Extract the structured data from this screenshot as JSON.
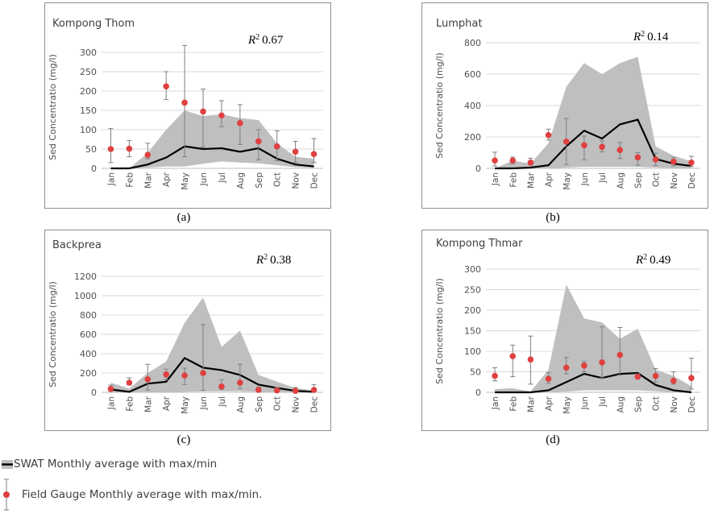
{
  "chart_data": [
    {
      "type": "line",
      "title": "Kompong Thom",
      "annotation": "0.67",
      "caption": "(a)",
      "ylabel": "Sed Concentratio (mg/l)",
      "ylim": [
        0,
        300
      ],
      "yticks": [
        0,
        50,
        100,
        150,
        200,
        250,
        300
      ],
      "categories": [
        "Jan",
        "Feb",
        "Mar",
        "Apr",
        "May",
        "Jun",
        "Jul",
        "Aug",
        "Sep",
        "Oct",
        "Nov",
        "Dec"
      ],
      "swat_avg": [
        0,
        0,
        10,
        28,
        57,
        50,
        52,
        43,
        52,
        25,
        10,
        5
      ],
      "swat_min": [
        0,
        0,
        2,
        5,
        5,
        12,
        18,
        15,
        13,
        8,
        3,
        2
      ],
      "swat_max": [
        0,
        0,
        40,
        100,
        150,
        135,
        140,
        130,
        125,
        65,
        30,
        25
      ],
      "field_avg": [
        50,
        51,
        35,
        212,
        170,
        147,
        137,
        117,
        70,
        57,
        43,
        37
      ],
      "field_min": [
        15,
        30,
        25,
        178,
        30,
        55,
        108,
        62,
        22,
        20,
        15,
        15
      ],
      "field_max": [
        103,
        72,
        65,
        250,
        318,
        205,
        175,
        165,
        100,
        97,
        70,
        77
      ]
    },
    {
      "type": "line",
      "title": "Lumphat",
      "annotation": "0.14",
      "caption": "(b)",
      "ylabel": "Sed Concentratio (mg/l)",
      "ylim": [
        0,
        800
      ],
      "yticks": [
        0,
        200,
        400,
        600,
        800
      ],
      "categories": [
        "Jan",
        "Feb",
        "Mar",
        "Apr",
        "May",
        "Jun",
        "Jul",
        "Aug",
        "Sep",
        "Oct",
        "Nov",
        "Dec"
      ],
      "swat_avg": [
        0,
        0,
        5,
        20,
        140,
        240,
        190,
        280,
        310,
        60,
        30,
        15
      ],
      "swat_min": [
        0,
        0,
        0,
        0,
        5,
        10,
        10,
        10,
        10,
        5,
        2,
        0
      ],
      "swat_max": [
        0,
        50,
        30,
        160,
        520,
        670,
        600,
        670,
        710,
        140,
        80,
        45
      ],
      "field_avg": [
        50,
        50,
        37,
        212,
        170,
        147,
        137,
        117,
        70,
        57,
        43,
        37
      ],
      "field_min": [
        15,
        30,
        20,
        180,
        25,
        55,
        105,
        62,
        20,
        18,
        15,
        12
      ],
      "field_max": [
        103,
        72,
        65,
        250,
        318,
        205,
        175,
        165,
        100,
        97,
        70,
        77
      ]
    },
    {
      "type": "line",
      "title": "Backprea",
      "annotation": "0.38",
      "caption": "(c)",
      "ylabel": "Sed Concentratio (mg/l)",
      "ylim": [
        0,
        1200
      ],
      "yticks": [
        0,
        200,
        400,
        600,
        800,
        1000,
        1200
      ],
      "categories": [
        "Jan",
        "Feb",
        "Mar",
        "Apr",
        "May",
        "Jun",
        "Jul",
        "Aug",
        "Sep",
        "Oct",
        "Nov",
        "Dec"
      ],
      "swat_avg": [
        30,
        5,
        90,
        110,
        355,
        255,
        230,
        180,
        80,
        45,
        15,
        5
      ],
      "swat_min": [
        0,
        0,
        0,
        0,
        5,
        10,
        10,
        10,
        5,
        5,
        0,
        0
      ],
      "swat_max": [
        100,
        40,
        200,
        320,
        720,
        980,
        470,
        640,
        180,
        110,
        45,
        20
      ],
      "field_avg": [
        35,
        100,
        135,
        185,
        175,
        200,
        60,
        100,
        25,
        20,
        15,
        25
      ],
      "field_min": [
        10,
        75,
        25,
        130,
        80,
        20,
        30,
        40,
        5,
        5,
        5,
        5
      ],
      "field_max": [
        75,
        150,
        290,
        240,
        250,
        700,
        130,
        290,
        55,
        50,
        50,
        80
      ]
    },
    {
      "type": "line",
      "title": "Kompong Thmar",
      "annotation": "0.49",
      "caption": "(d)",
      "ylabel": "Sed Concentratio (mg/l)",
      "ylim": [
        0,
        300
      ],
      "yticks": [
        0,
        50,
        100,
        150,
        200,
        250,
        300
      ],
      "categories": [
        "Jan",
        "Feb",
        "Mar",
        "Apr",
        "May",
        "Jun",
        "Jul",
        "Aug",
        "Sep",
        "Oct",
        "Nov",
        "Dec"
      ],
      "swat_avg": [
        0,
        0,
        0,
        5,
        25,
        45,
        35,
        45,
        47,
        18,
        5,
        0
      ],
      "swat_min": [
        0,
        0,
        0,
        0,
        2,
        5,
        5,
        5,
        5,
        3,
        0,
        0
      ],
      "swat_max": [
        8,
        10,
        2,
        55,
        262,
        180,
        170,
        130,
        155,
        55,
        40,
        15
      ],
      "field_avg": [
        40,
        88,
        80,
        33,
        60,
        65,
        73,
        91,
        38,
        40,
        28,
        35
      ],
      "field_min": [
        28,
        38,
        20,
        22,
        45,
        50,
        35,
        42,
        33,
        25,
        20,
        8
      ],
      "field_max": [
        60,
        115,
        137,
        48,
        85,
        75,
        160,
        158,
        45,
        58,
        50,
        83
      ]
    }
  ],
  "legend": {
    "swat": "SWAT Monthly average with max/min",
    "field": "Field Gauge Monthly average with max/min."
  },
  "colors": {
    "band": "#bfbfbf",
    "line": "#000000",
    "marker": "#e04040",
    "errorbar": "#7f7f7f",
    "grid": "#d9d9d9"
  }
}
